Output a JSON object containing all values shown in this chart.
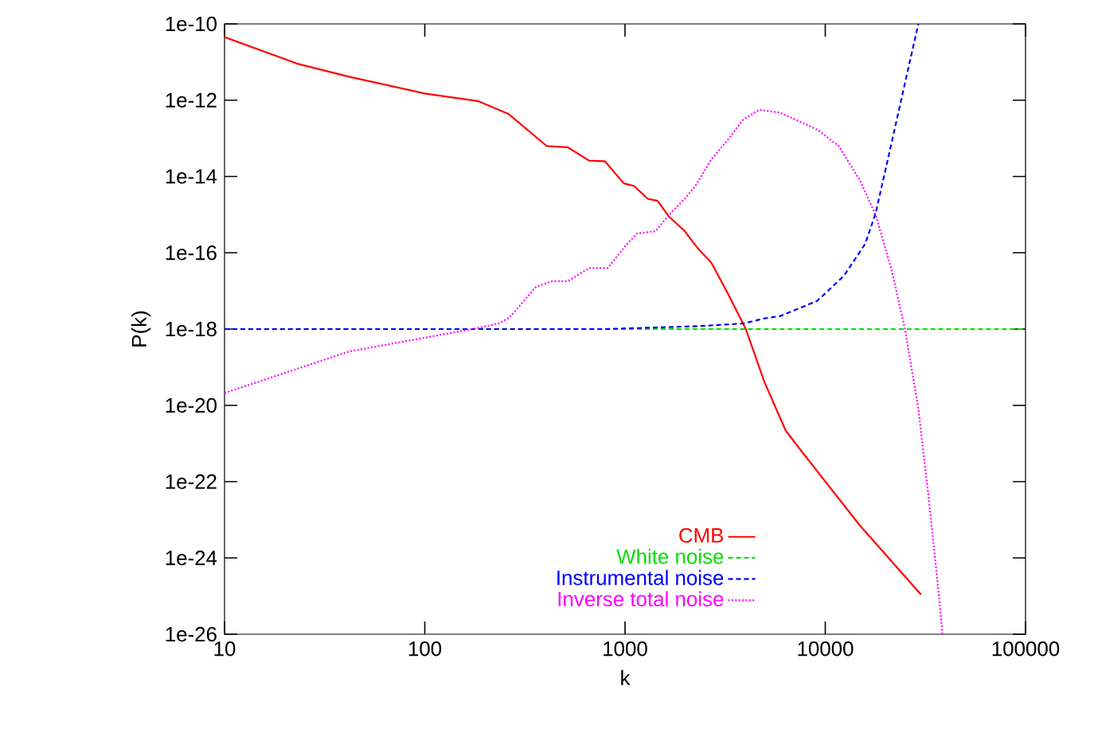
{
  "chart_data": {
    "type": "line",
    "xlabel": "k",
    "ylabel": "P(k)",
    "log": "xy",
    "grid": false,
    "legend": "bottom right",
    "xlim": [
      10,
      100000
    ],
    "ylim": [
      1e-26,
      1e-10
    ],
    "xticks": [
      10,
      100,
      1000,
      10000,
      100000
    ],
    "yticks": [
      {
        "value": 1e-26,
        "label": "1e-26"
      },
      {
        "value": 1e-24,
        "label": "1e-24"
      },
      {
        "value": 1e-22,
        "label": "1e-22"
      },
      {
        "value": 1e-20,
        "label": "1e-20"
      },
      {
        "value": 1e-18,
        "label": "1e-18"
      },
      {
        "value": 1e-16,
        "label": "1e-16"
      },
      {
        "value": 1e-14,
        "label": "1e-14"
      },
      {
        "value": 1e-12,
        "label": "1e-12"
      },
      {
        "value": 1e-10,
        "label": "1e-10"
      }
    ],
    "series": [
      {
        "name": "CMB",
        "color": "#ff0000",
        "line_style": "solid",
        "x": [
          10,
          23,
          42,
          100,
          184,
          263,
          406,
          519,
          662,
          794,
          986,
          1112,
          1297,
          1455,
          1656,
          1986,
          2312,
          2698,
          3236,
          3776,
          4009,
          4966,
          6339,
          7603,
          14890,
          30060
        ],
        "values": [
          4.5e-11,
          9.1e-12,
          4.1e-12,
          1.5e-12,
          9.5e-13,
          4.3e-13,
          6.3e-14,
          5.8e-14,
          2.6e-14,
          2.5e-14,
          6.6e-15,
          5.6e-15,
          2.6e-15,
          2.3e-15,
          8.9e-16,
          3.7e-16,
          1.3e-16,
          5.5e-17,
          9.3e-18,
          1.9e-18,
          1e-18,
          4.1e-20,
          2.2e-21,
          6.3e-22,
          7.1e-24,
          1.1e-25
        ]
      },
      {
        "name": "White noise",
        "color": "#00e000",
        "line_style": "dashed",
        "x": [
          10,
          100000
        ],
        "values": [
          1e-18,
          1e-18
        ]
      },
      {
        "name": "Instrumental noise",
        "color": "#0000ff",
        "line_style": "dashed",
        "x": [
          10,
          794,
          2382,
          3890,
          4966,
          5957,
          9120,
          12390,
          15810,
          17860,
          20230,
          23550,
          26610,
          29170
        ],
        "values": [
          1e-18,
          1e-18,
          1.2e-18,
          1.4e-18,
          1.9e-18,
          2.2e-18,
          5.5e-18,
          2.5e-17,
          1.7e-16,
          1.1e-15,
          2e-14,
          6.9e-13,
          1.2e-11,
          1e-10
        ]
      },
      {
        "name": "Inverse total noise",
        "color": "#ff00ff",
        "line_style": "dotted",
        "x": [
          10,
          42,
          173,
          234,
          265,
          360,
          433,
          519,
          662,
          820,
          1014,
          1148,
          1422,
          1656,
          1986,
          2244,
          2698,
          3236,
          3890,
          4677,
          5957,
          9120,
          11670,
          14890,
          17860,
          21480,
          25000,
          29170,
          32890,
          37150,
          38460
        ],
        "values": [
          2.1e-20,
          2.6e-19,
          1e-18,
          1.4e-18,
          2e-18,
          1.3e-17,
          1.8e-17,
          1.8e-17,
          4e-17,
          4e-17,
          1.6e-16,
          3.2e-16,
          3.7e-16,
          9.8e-16,
          2.6e-15,
          5.6e-15,
          2.8e-14,
          8.7e-14,
          3.1e-13,
          5.6e-13,
          4.7e-13,
          1.7e-13,
          6.3e-14,
          7.9e-15,
          9.8e-16,
          3.4e-17,
          1e-18,
          8.1e-21,
          3.5e-23,
          7.9e-26,
          1e-26
        ]
      }
    ]
  }
}
